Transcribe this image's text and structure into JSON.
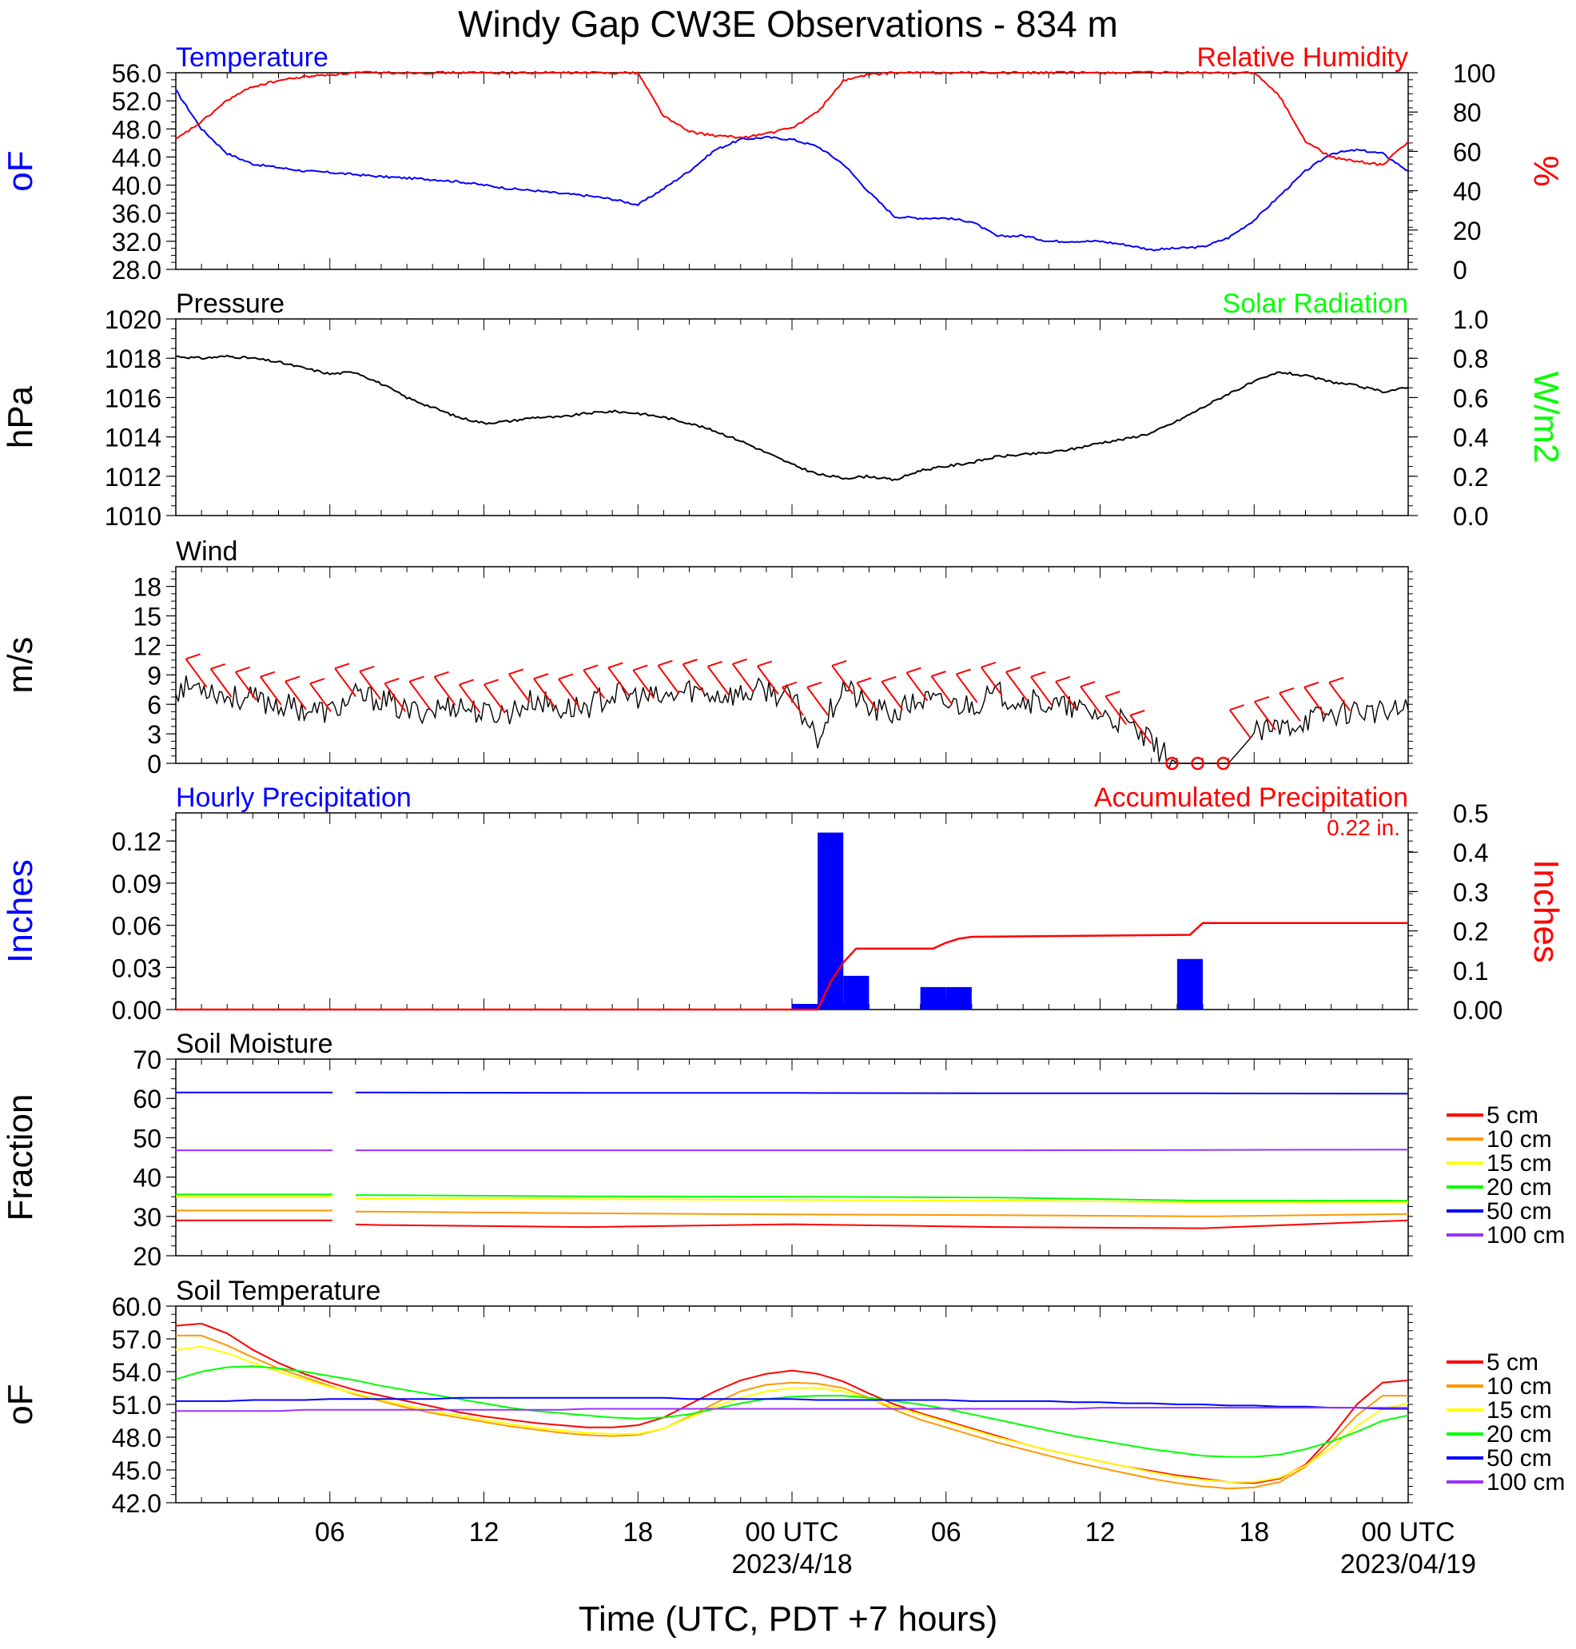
{
  "title": "Windy Gap CW3E Observations - 834 m",
  "x_axis": {
    "title": "Time (UTC, PDT +7 hours)",
    "ticks": [
      "06",
      "12",
      "18",
      "00 UTC",
      "06",
      "12",
      "18",
      "00 UTC"
    ],
    "dates": [
      "2023/4/18",
      "2023/04/19"
    ]
  },
  "colors": {
    "temperature": "#0000ff",
    "humidity": "#ff0000",
    "pressure": "#000000",
    "solar": "#00ff00",
    "wind": "#000000",
    "barbs": "#ff0000",
    "hourly_precip": "#0000ff",
    "accum_precip": "#ff0000"
  },
  "chart_data": [
    {
      "type": "line",
      "title_left": "Temperature",
      "title_right": "Relative Humidity",
      "ylabel_left": "oF",
      "ylabel_right": "%",
      "ylim_left": [
        28,
        56
      ],
      "yticks_left": [
        "56.0",
        "52.0",
        "48.0",
        "44.0",
        "40.0",
        "36.0",
        "32.0",
        "28.0"
      ],
      "ylim_right": [
        0,
        100
      ],
      "yticks_right": [
        "100",
        "80",
        "60",
        "40",
        "20",
        "0"
      ],
      "x_hours": [
        0,
        1,
        2,
        3,
        4,
        5,
        6,
        7,
        8,
        9,
        10,
        11,
        12,
        13,
        14,
        15,
        16,
        17,
        18,
        19,
        20,
        21,
        22,
        23,
        24,
        25,
        26,
        27,
        28,
        29,
        30,
        31,
        32,
        33,
        34,
        35,
        36,
        37,
        38,
        39,
        40,
        41,
        42,
        43,
        44,
        45,
        46,
        47,
        48
      ],
      "series": [
        {
          "name": "Temperature",
          "values": [
            53.5,
            48.0,
            44.5,
            43.0,
            42.5,
            42.0,
            41.8,
            41.5,
            41.2,
            41.0,
            40.8,
            40.5,
            40.0,
            39.5,
            39.2,
            38.8,
            38.5,
            38.0,
            37.2,
            39.5,
            42.0,
            45.0,
            46.5,
            46.8,
            46.5,
            45.5,
            43.0,
            39.0,
            35.5,
            35.3,
            35.3,
            34.8,
            32.7,
            32.8,
            32.0,
            32.0,
            32.0,
            31.5,
            30.8,
            31.0,
            31.2,
            32.5,
            35.0,
            38.5,
            42.0,
            44.5,
            45.0,
            44.5,
            42.0
          ]
        },
        {
          "name": "Relative Humidity",
          "values": [
            66,
            75,
            86,
            93,
            96,
            98,
            99,
            100,
            100,
            100,
            100,
            100,
            100,
            100,
            100,
            100,
            100,
            100,
            100,
            78,
            70,
            68,
            67,
            69,
            72,
            80,
            96,
            99,
            100,
            100,
            100,
            100,
            100,
            100,
            100,
            100,
            100,
            100,
            100,
            100,
            100,
            100,
            100,
            88,
            65,
            57,
            55,
            53,
            65
          ]
        }
      ]
    },
    {
      "type": "line",
      "title_left": "Pressure",
      "title_right": "Solar Radiation",
      "ylabel_left": "hPa",
      "ylabel_right": "W/m2",
      "ylim_left": [
        1010,
        1020
      ],
      "yticks_left": [
        "1020",
        "1018",
        "1016",
        "1014",
        "1012",
        "1010"
      ],
      "ylim_right": [
        0,
        1
      ],
      "yticks_right": [
        "1.0",
        "0.8",
        "0.6",
        "0.4",
        "0.2",
        "0.0"
      ],
      "x_hours": [
        0,
        1,
        2,
        3,
        4,
        5,
        6,
        7,
        8,
        9,
        10,
        11,
        12,
        13,
        14,
        15,
        16,
        17,
        18,
        19,
        20,
        21,
        22,
        23,
        24,
        25,
        26,
        27,
        28,
        29,
        30,
        31,
        32,
        33,
        34,
        35,
        36,
        37,
        38,
        39,
        40,
        41,
        42,
        43,
        44,
        45,
        46,
        47,
        48
      ],
      "series": [
        {
          "name": "Pressure",
          "values": [
            1018.1,
            1018.0,
            1018.1,
            1018.0,
            1017.8,
            1017.5,
            1017.2,
            1017.3,
            1016.7,
            1016.0,
            1015.5,
            1015.0,
            1014.7,
            1014.8,
            1015.0,
            1015.0,
            1015.2,
            1015.3,
            1015.2,
            1015.0,
            1014.7,
            1014.3,
            1013.8,
            1013.2,
            1012.6,
            1012.1,
            1011.9,
            1012.0,
            1011.8,
            1012.3,
            1012.5,
            1012.7,
            1013.0,
            1013.1,
            1013.2,
            1013.4,
            1013.7,
            1013.9,
            1014.2,
            1014.8,
            1015.5,
            1016.2,
            1016.8,
            1017.3,
            1017.1,
            1016.8,
            1016.6,
            1016.3,
            1016.5
          ]
        }
      ]
    },
    {
      "type": "line",
      "title_left": "Wind",
      "ylabel_left": "m/s",
      "ylim_left": [
        0,
        20
      ],
      "yticks_left": [
        "18",
        "15",
        "12",
        "9",
        "6",
        "3",
        "0"
      ],
      "x_hours": [
        0,
        1,
        2,
        3,
        4,
        5,
        6,
        7,
        8,
        9,
        10,
        11,
        12,
        13,
        14,
        15,
        16,
        17,
        18,
        19,
        20,
        21,
        22,
        23,
        24,
        25,
        26,
        27,
        28,
        29,
        30,
        31,
        32,
        33,
        34,
        35,
        36,
        37,
        38,
        39,
        40,
        41,
        42,
        43,
        44,
        45,
        46,
        47,
        48
      ],
      "series": [
        {
          "name": "Wind speed",
          "values": [
            7.5,
            8.0,
            6.8,
            6.5,
            6.0,
            5.5,
            5.2,
            6.8,
            6.5,
            5.2,
            5.5,
            6.0,
            5.0,
            5.2,
            6.5,
            5.5,
            5.8,
            7.0,
            6.8,
            6.5,
            7.5,
            7.0,
            7.0,
            7.5,
            6.5,
            2.8,
            8.0,
            5.5,
            5.0,
            6.5,
            6.0,
            6.0,
            7.0,
            6.5,
            6.0,
            5.5,
            5.0,
            4.0,
            2.0,
            0.0,
            0.0,
            0.0,
            3.0,
            3.5,
            4.5,
            5.0,
            5.5,
            5.0,
            5.5
          ]
        }
      ],
      "barb_count": 47,
      "calm_count": 3
    },
    {
      "type": "bar",
      "title_left": "Hourly Precipitation",
      "title_right": "Accumulated Precipitation",
      "total_label": "0.22 in.",
      "ylabel_left": "Inches",
      "ylabel_right": "Inches",
      "ylim_left": [
        0,
        0.14
      ],
      "yticks_left": [
        "0.12",
        "0.09",
        "0.06",
        "0.03",
        "0.00"
      ],
      "ylim_right": [
        0,
        0.5
      ],
      "yticks_right": [
        "0.5",
        "0.4",
        "0.3",
        "0.2",
        "0.1",
        "0.00"
      ],
      "hourly_bars": [
        {
          "hour": 24,
          "value": 0.004
        },
        {
          "hour": 25,
          "value": 0.126
        },
        {
          "hour": 26,
          "value": 0.024
        },
        {
          "hour": 29,
          "value": 0.016
        },
        {
          "hour": 30,
          "value": 0.016
        },
        {
          "hour": 39,
          "value": 0.036
        }
      ],
      "accumulated": {
        "x_hours": [
          0,
          25.0,
          25.5,
          26.0,
          26.5,
          29.5,
          30.0,
          30.5,
          31.0,
          39.5,
          40.0,
          48.0
        ],
        "values": [
          0,
          0,
          0.07,
          0.12,
          0.155,
          0.155,
          0.17,
          0.18,
          0.185,
          0.19,
          0.22,
          0.22
        ]
      }
    },
    {
      "type": "line",
      "title_left": "Soil Moisture",
      "ylabel_left": "Fraction",
      "ylim_left": [
        20,
        70
      ],
      "yticks_left": [
        "70",
        "60",
        "50",
        "40",
        "30",
        "20"
      ],
      "legend": [
        "5 cm",
        "10 cm",
        "15 cm",
        "20 cm",
        "50 cm",
        "100 cm"
      ],
      "series_colors": [
        "#ff0000",
        "#ff9900",
        "#ffff00",
        "#00ff00",
        "#0000ff",
        "#9933ff"
      ],
      "gap_hours": [
        6.1,
        7.0
      ],
      "x_hours": [
        0,
        8,
        16,
        24,
        32,
        40,
        48
      ],
      "series": [
        {
          "name": "5 cm",
          "values": [
            29.0,
            27.8,
            27.3,
            28.0,
            27.3,
            27.0,
            29.0
          ]
        },
        {
          "name": "10 cm",
          "values": [
            31.5,
            31.2,
            30.8,
            30.5,
            30.3,
            30.0,
            30.6
          ]
        },
        {
          "name": "15 cm",
          "values": [
            35.0,
            34.6,
            34.4,
            34.2,
            34.0,
            33.6,
            33.5
          ]
        },
        {
          "name": "20 cm",
          "values": [
            35.6,
            35.4,
            35.1,
            35.0,
            34.8,
            34.0,
            34.0
          ]
        },
        {
          "name": "50 cm",
          "values": [
            61.5,
            61.5,
            61.4,
            61.4,
            61.3,
            61.3,
            61.2
          ]
        },
        {
          "name": "100 cm",
          "values": [
            46.8,
            46.8,
            46.8,
            46.8,
            46.8,
            46.9,
            47.0
          ]
        }
      ]
    },
    {
      "type": "line",
      "title_left": "Soil Temperature",
      "ylabel_left": "oF",
      "ylim_left": [
        42,
        60
      ],
      "yticks_left": [
        "60.0",
        "57.0",
        "54.0",
        "51.0",
        "48.0",
        "45.0",
        "42.0"
      ],
      "legend": [
        "5 cm",
        "10 cm",
        "15 cm",
        "20 cm",
        "50 cm",
        "100 cm"
      ],
      "series_colors": [
        "#ff0000",
        "#ff9900",
        "#ffff00",
        "#00ff00",
        "#0000ff",
        "#9933ff"
      ],
      "x_hours": [
        0,
        1,
        2,
        3,
        4,
        5,
        6,
        7,
        8,
        9,
        10,
        11,
        12,
        13,
        14,
        15,
        16,
        17,
        18,
        19,
        20,
        21,
        22,
        23,
        24,
        25,
        26,
        27,
        28,
        29,
        30,
        31,
        32,
        33,
        34,
        35,
        36,
        37,
        38,
        39,
        40,
        41,
        42,
        43,
        44,
        45,
        46,
        47,
        48
      ],
      "series": [
        {
          "name": "5 cm",
          "values": [
            58.2,
            58.4,
            57.5,
            56.0,
            54.8,
            53.8,
            53.0,
            52.3,
            51.8,
            51.3,
            50.8,
            50.3,
            49.9,
            49.6,
            49.3,
            49.1,
            48.9,
            48.9,
            49.1,
            49.8,
            51.0,
            52.2,
            53.2,
            53.8,
            54.1,
            53.8,
            53.1,
            52.0,
            51.0,
            50.2,
            49.5,
            48.8,
            48.1,
            47.4,
            46.8,
            46.3,
            45.8,
            45.3,
            44.9,
            44.5,
            44.2,
            43.9,
            43.8,
            44.2,
            45.5,
            48.0,
            51.0,
            53.0,
            53.2
          ]
        },
        {
          "name": "10 cm",
          "values": [
            57.3,
            57.3,
            56.4,
            55.3,
            54.3,
            53.5,
            52.7,
            51.9,
            51.3,
            50.7,
            50.2,
            49.8,
            49.4,
            49.0,
            48.7,
            48.4,
            48.2,
            48.1,
            48.2,
            48.8,
            49.9,
            51.1,
            52.2,
            52.8,
            53.0,
            52.9,
            52.5,
            51.6,
            50.5,
            49.6,
            48.9,
            48.2,
            47.5,
            46.9,
            46.3,
            45.7,
            45.2,
            44.7,
            44.2,
            43.8,
            43.5,
            43.3,
            43.4,
            43.9,
            45.3,
            47.5,
            50.0,
            51.8,
            51.8
          ]
        },
        {
          "name": "15 cm",
          "values": [
            56.0,
            56.3,
            55.7,
            54.8,
            54.0,
            53.3,
            52.6,
            52.0,
            51.4,
            50.9,
            50.4,
            50.0,
            49.6,
            49.2,
            48.9,
            48.6,
            48.4,
            48.3,
            48.3,
            48.8,
            49.8,
            50.8,
            51.6,
            52.2,
            52.5,
            52.5,
            52.2,
            51.5,
            50.8,
            50.1,
            49.4,
            48.7,
            48.0,
            47.4,
            46.8,
            46.3,
            45.8,
            45.3,
            44.8,
            44.4,
            44.1,
            43.9,
            43.9,
            44.3,
            45.4,
            47.0,
            49.0,
            50.6,
            51.1
          ]
        },
        {
          "name": "20 cm",
          "values": [
            53.3,
            54.0,
            54.4,
            54.5,
            54.3,
            54.0,
            53.6,
            53.2,
            52.7,
            52.3,
            51.9,
            51.5,
            51.1,
            50.7,
            50.4,
            50.2,
            50.0,
            49.8,
            49.7,
            49.8,
            50.1,
            50.6,
            51.1,
            51.5,
            51.7,
            51.8,
            51.8,
            51.6,
            51.3,
            51.0,
            50.6,
            50.1,
            49.6,
            49.1,
            48.6,
            48.1,
            47.7,
            47.3,
            46.9,
            46.6,
            46.3,
            46.2,
            46.2,
            46.4,
            46.9,
            47.6,
            48.5,
            49.5,
            50.0
          ]
        },
        {
          "name": "50 cm",
          "values": [
            51.3,
            51.3,
            51.3,
            51.4,
            51.4,
            51.4,
            51.5,
            51.5,
            51.5,
            51.5,
            51.5,
            51.6,
            51.6,
            51.6,
            51.6,
            51.6,
            51.6,
            51.6,
            51.6,
            51.6,
            51.5,
            51.5,
            51.5,
            51.5,
            51.5,
            51.4,
            51.4,
            51.4,
            51.4,
            51.4,
            51.4,
            51.3,
            51.3,
            51.3,
            51.3,
            51.2,
            51.2,
            51.1,
            51.1,
            51.0,
            51.0,
            50.9,
            50.9,
            50.8,
            50.8,
            50.7,
            50.7,
            50.6,
            50.6
          ]
        },
        {
          "name": "100 cm",
          "values": [
            50.4,
            50.4,
            50.4,
            50.4,
            50.4,
            50.5,
            50.5,
            50.5,
            50.5,
            50.5,
            50.5,
            50.5,
            50.5,
            50.5,
            50.5,
            50.5,
            50.6,
            50.6,
            50.6,
            50.6,
            50.6,
            50.6,
            50.6,
            50.6,
            50.6,
            50.6,
            50.6,
            50.6,
            50.6,
            50.6,
            50.6,
            50.6,
            50.6,
            50.6,
            50.6,
            50.6,
            50.7,
            50.7,
            50.7,
            50.7,
            50.7,
            50.7,
            50.7,
            50.7,
            50.7,
            50.7,
            50.7,
            50.7,
            50.7
          ]
        }
      ]
    }
  ]
}
